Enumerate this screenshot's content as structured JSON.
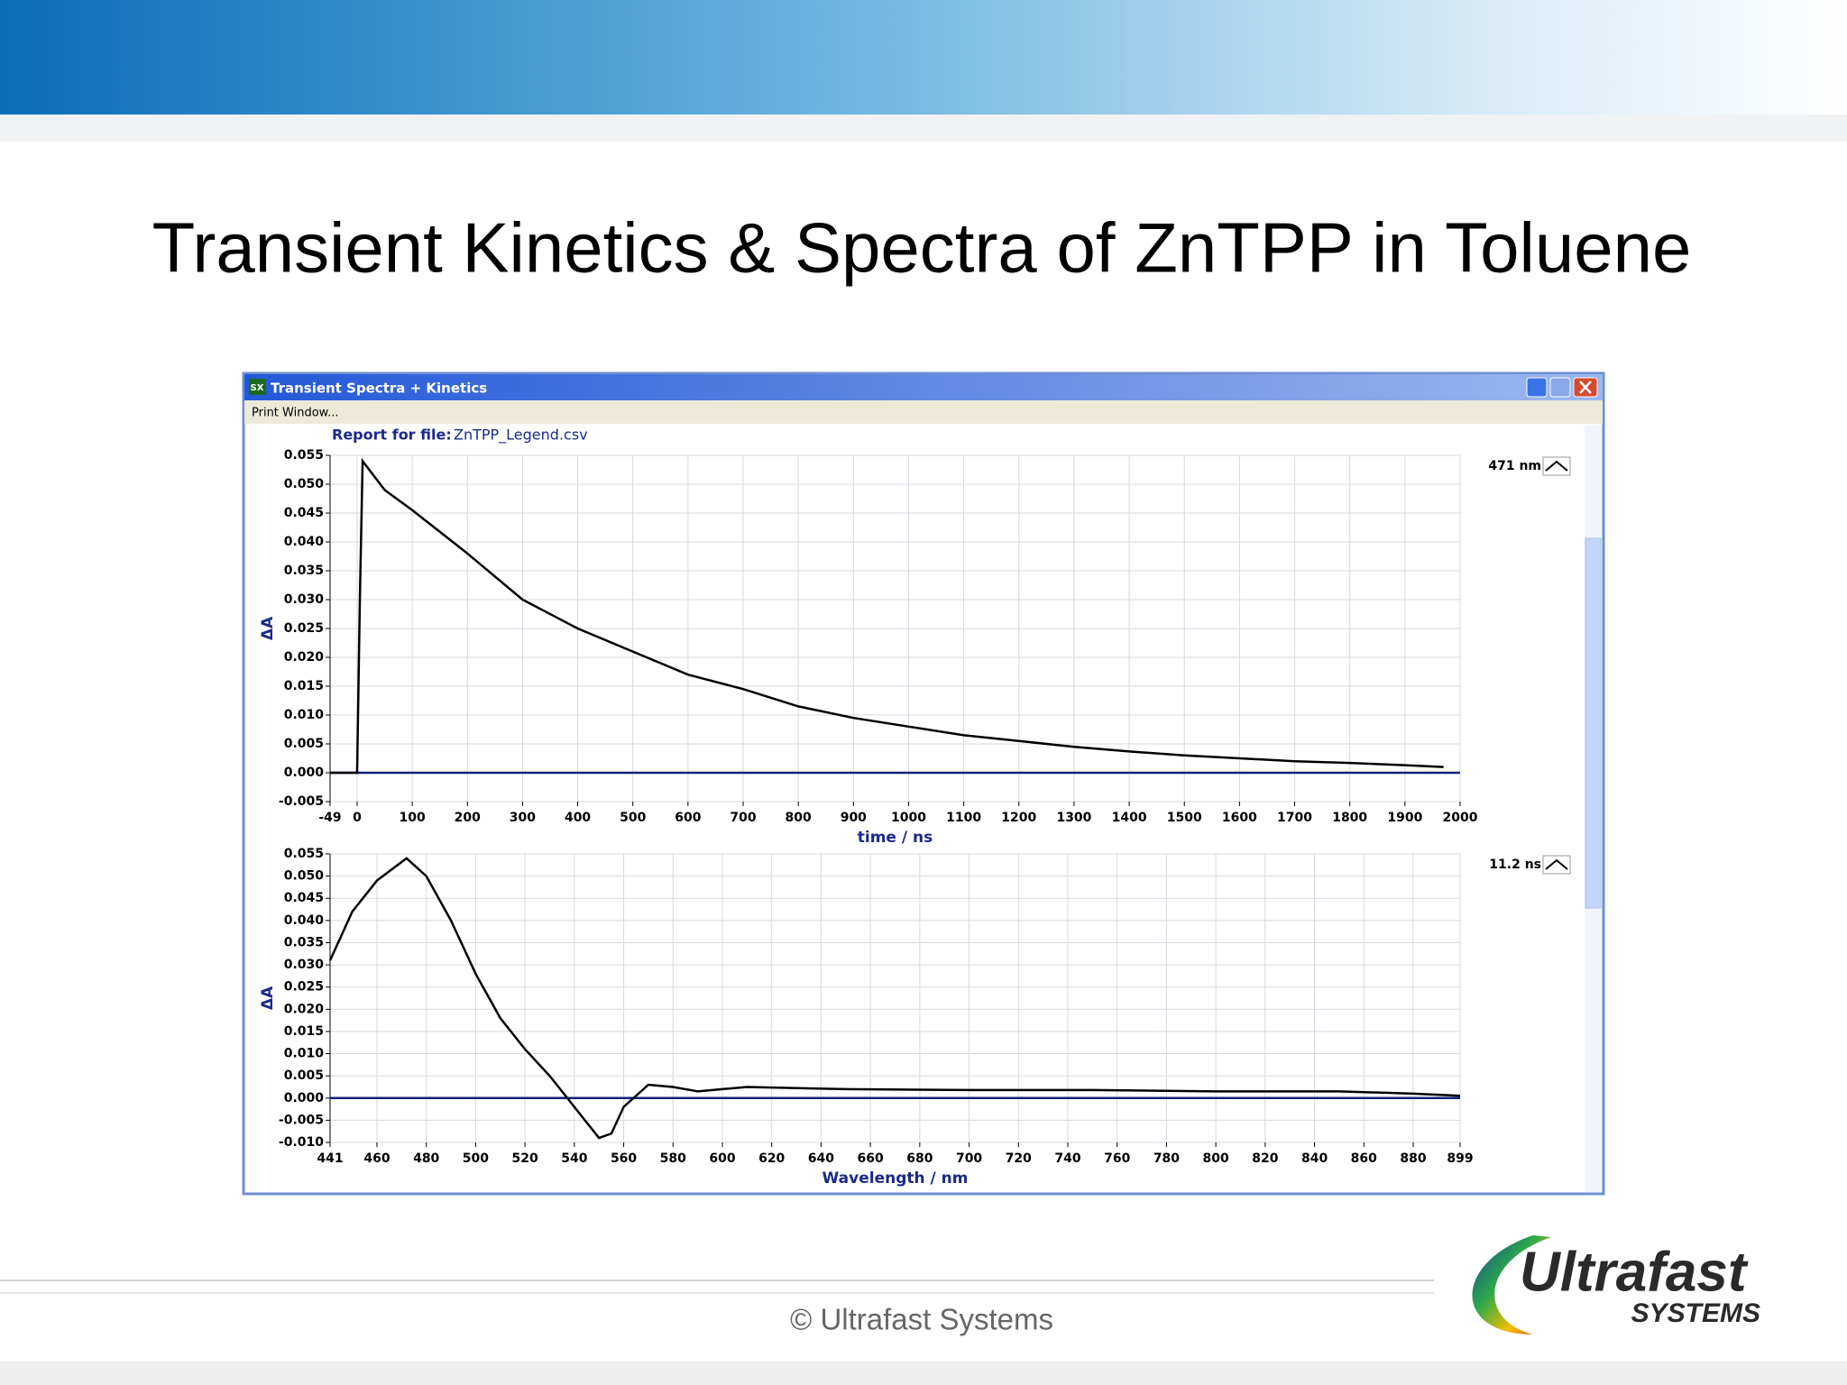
{
  "slide": {
    "title": "Transient Kinetics & Spectra of ZnTPP in Toluene",
    "footer": "© Ultrafast Systems",
    "logo_main": "Ultrafast",
    "logo_sub": "SYSTEMS"
  },
  "window": {
    "icon": "SX",
    "title": "Transient Spectra + Kinetics",
    "menu": "Print Window...",
    "report_label": "Report for file:",
    "report_file": "ZnTPP_Legend.csv"
  },
  "chart_data": [
    {
      "type": "line",
      "xlabel": "time / ns",
      "ylabel": "ΔA",
      "grid": true,
      "x": [
        -49,
        -10,
        0,
        5,
        10,
        50,
        100,
        200,
        300,
        400,
        500,
        600,
        700,
        800,
        900,
        1000,
        1100,
        1200,
        1300,
        1400,
        1500,
        1600,
        1700,
        1800,
        1900,
        1970
      ],
      "series": [
        {
          "name": "471 nm",
          "color": "#000000",
          "values": [
            0,
            0,
            0,
            0.03,
            0.054,
            0.049,
            0.0455,
            0.038,
            0.03,
            0.025,
            0.021,
            0.017,
            0.0145,
            0.0115,
            0.0095,
            0.008,
            0.0065,
            0.0055,
            0.0045,
            0.0037,
            0.003,
            0.0025,
            0.002,
            0.0017,
            0.0013,
            0.001
          ]
        }
      ],
      "xlim": [
        -49,
        2000
      ],
      "xticks": [
        -49,
        0,
        100,
        200,
        300,
        400,
        500,
        600,
        700,
        800,
        900,
        1000,
        1100,
        1200,
        1300,
        1400,
        1500,
        1600,
        1700,
        1800,
        1900,
        2000
      ],
      "ylim": [
        -0.005,
        0.055
      ],
      "yticks": [
        {
          "value": -0.005,
          "label": "-0.005"
        },
        {
          "value": 0,
          "label": "0.000"
        },
        {
          "value": 0.005,
          "label": "0.005"
        },
        {
          "value": 0.01,
          "label": "0.010"
        },
        {
          "value": 0.015,
          "label": "0.015"
        },
        {
          "value": 0.02,
          "label": "0.020"
        },
        {
          "value": 0.025,
          "label": "0.025"
        },
        {
          "value": 0.03,
          "label": "0.030"
        },
        {
          "value": 0.035,
          "label": "0.035"
        },
        {
          "value": 0.04,
          "label": "0.040"
        },
        {
          "value": 0.045,
          "label": "0.045"
        },
        {
          "value": 0.05,
          "label": "0.050"
        },
        {
          "value": 0.055,
          "label": "0.055"
        }
      ]
    },
    {
      "type": "line",
      "xlabel": "Wavelength / nm",
      "ylabel": "ΔA",
      "grid": true,
      "x": [
        441,
        450,
        460,
        472,
        480,
        490,
        500,
        510,
        520,
        530,
        540,
        550,
        555,
        560,
        570,
        580,
        590,
        600,
        610,
        650,
        700,
        750,
        800,
        850,
        880,
        899
      ],
      "series": [
        {
          "name": "11.2 ns",
          "color": "#000000",
          "values": [
            0.031,
            0.042,
            0.049,
            0.054,
            0.05,
            0.04,
            0.028,
            0.018,
            0.011,
            0.005,
            -0.002,
            -0.009,
            -0.008,
            -0.002,
            0.003,
            0.0025,
            0.0015,
            0.002,
            0.0025,
            0.002,
            0.0018,
            0.0018,
            0.0015,
            0.0015,
            0.001,
            0.0005
          ]
        }
      ],
      "xlim": [
        441,
        899
      ],
      "xticks": [
        441,
        460,
        480,
        500,
        520,
        540,
        560,
        580,
        600,
        620,
        640,
        660,
        680,
        700,
        720,
        740,
        760,
        780,
        800,
        820,
        840,
        860,
        880,
        899
      ],
      "ylim": [
        -0.01,
        0.055
      ],
      "yticks": [
        {
          "value": -0.01,
          "label": "-0.010"
        },
        {
          "value": -0.005,
          "label": "-0.005"
        },
        {
          "value": 0,
          "label": "0.000"
        },
        {
          "value": 0.005,
          "label": "0.005"
        },
        {
          "value": 0.01,
          "label": "0.010"
        },
        {
          "value": 0.015,
          "label": "0.015"
        },
        {
          "value": 0.02,
          "label": "0.020"
        },
        {
          "value": 0.025,
          "label": "0.025"
        },
        {
          "value": 0.03,
          "label": "0.030"
        },
        {
          "value": 0.035,
          "label": "0.035"
        },
        {
          "value": 0.04,
          "label": "0.040"
        },
        {
          "value": 0.045,
          "label": "0.045"
        },
        {
          "value": 0.05,
          "label": "0.050"
        },
        {
          "value": 0.055,
          "label": "0.055"
        }
      ]
    }
  ]
}
